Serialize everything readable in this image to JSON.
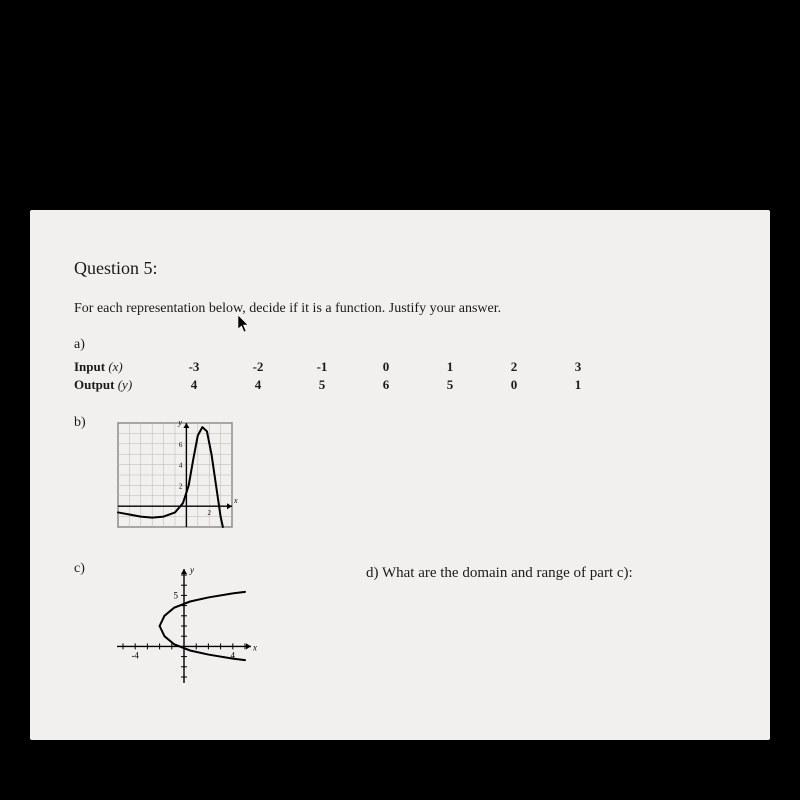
{
  "background_color": "#000000",
  "paper_color": "#f2f0ee",
  "text_color": "#1a1a1a",
  "question": {
    "heading": "Question 5:",
    "prompt": "For each representation below, decide if it is a function.  Justify your answer."
  },
  "part_a": {
    "label": "a)",
    "row_input_label": "Input",
    "row_input_var": "(x)",
    "row_output_label": "Output",
    "row_output_var": "(y)",
    "inputs": [
      "-3",
      "-2",
      "-1",
      "0",
      "1",
      "2",
      "3"
    ],
    "outputs": [
      "4",
      "4",
      "5",
      "6",
      "5",
      "0",
      "1"
    ]
  },
  "part_b": {
    "label": "b)",
    "graph": {
      "type": "line",
      "xlim": [
        -6,
        4
      ],
      "ylim": [
        -2,
        8
      ],
      "grid_step": 1,
      "grid_color": "#b8b6b2",
      "axis_color": "#000000",
      "curve_color": "#000000",
      "curve_stroke": 2,
      "x_axis_label": "x",
      "y_axis_label": "y",
      "tick_labels_y": [
        2,
        4,
        6
      ],
      "tick_labels_x": [
        2
      ],
      "curve_points": [
        [
          -6,
          -0.6
        ],
        [
          -5,
          -0.8
        ],
        [
          -4,
          -1.0
        ],
        [
          -3,
          -1.1
        ],
        [
          -2,
          -1.0
        ],
        [
          -1,
          -0.6
        ],
        [
          -0.3,
          0.3
        ],
        [
          0.2,
          2.0
        ],
        [
          0.6,
          4.5
        ],
        [
          1.0,
          6.8
        ],
        [
          1.4,
          7.6
        ],
        [
          1.8,
          7.2
        ],
        [
          2.2,
          5.0
        ],
        [
          2.6,
          2.0
        ],
        [
          3.0,
          -1.0
        ],
        [
          3.2,
          -2.0
        ]
      ]
    }
  },
  "part_c": {
    "label": "c)",
    "graph": {
      "type": "line",
      "xlim": [
        -5,
        5
      ],
      "ylim": [
        -3,
        7
      ],
      "axis_color": "#000000",
      "curve_color": "#000000",
      "curve_stroke": 2,
      "x_axis_label": "x",
      "y_axis_label": "y",
      "tick_labels_y": [
        5
      ],
      "tick_labels_x": [
        -4,
        4
      ],
      "upper_curve_points": [
        [
          -2,
          2
        ],
        [
          -1.6,
          3.0
        ],
        [
          -0.8,
          3.8
        ],
        [
          0.5,
          4.4
        ],
        [
          2.0,
          4.8
        ],
        [
          4.0,
          5.2
        ],
        [
          5.0,
          5.35
        ]
      ],
      "lower_curve_points": [
        [
          -2,
          2
        ],
        [
          -1.6,
          1.0
        ],
        [
          -0.8,
          0.2
        ],
        [
          0.5,
          -0.4
        ],
        [
          2.0,
          -0.8
        ],
        [
          4.0,
          -1.2
        ],
        [
          5.0,
          -1.35
        ]
      ]
    }
  },
  "part_d": {
    "label": "d) What are the domain and range of part c):"
  }
}
